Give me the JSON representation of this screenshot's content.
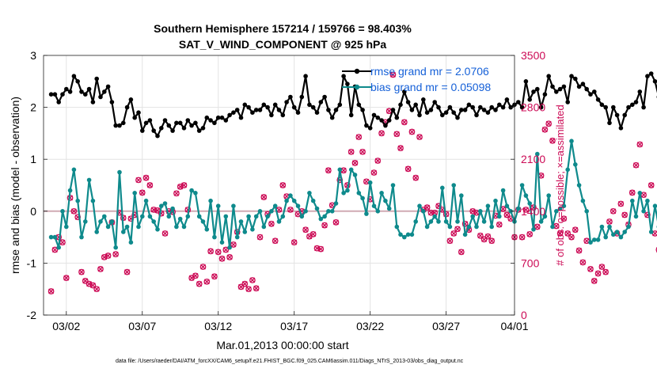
{
  "chart_data": {
    "type": "line",
    "title": "Southern Hemisphere 157214 / 159766 = 98.403%",
    "subtitle": "SAT_V_WIND_COMPONENT @ 925 hPa",
    "xlabel": "Mar.01,2013 00:00:00 start",
    "ylabel": "rmse and bias (model - observation)",
    "y2label": "# of obs: o=possible; ×=assimilated",
    "footnote": "data file: /Users/raeder/DAI/ATM_forcXX/CAM6_setup/f.e21.FHIST_BGC.f09_025.CAM6assim.011/Diags_NTrS_2013-03/obs_diag_output.nc",
    "ylim": [
      -2,
      3
    ],
    "y2lim": [
      0,
      3500
    ],
    "xlim": [
      0.5,
      31.5
    ],
    "grid": true,
    "yticks": [
      "-2",
      "-1",
      "0",
      "1",
      "2",
      "3"
    ],
    "y2ticks": [
      "0",
      "700",
      "1400",
      "2100",
      "2800",
      "3500"
    ],
    "xticks": [
      {
        "x": 2,
        "label": "03/02"
      },
      {
        "x": 7,
        "label": "03/07"
      },
      {
        "x": 12,
        "label": "03/12"
      },
      {
        "x": 17,
        "label": "03/17"
      },
      {
        "x": 22,
        "label": "03/22"
      },
      {
        "x": 27,
        "label": "03/27"
      },
      {
        "x": 32,
        "label": "04/01"
      }
    ],
    "legend_position": "top-right",
    "colors": {
      "rmse": "#000000",
      "bias": "#0e8a8c",
      "obs": "#cc0a55",
      "legend_text": "#1560d8",
      "zero_line": "#d0aab4"
    },
    "series": [
      {
        "name": "rmse grand mean",
        "legend_label": "rmse grand mr = 2.0706",
        "x_start": 1.0,
        "x_step": 0.25,
        "values": [
          2.25,
          2.25,
          2.1,
          2.25,
          2.35,
          2.3,
          2.6,
          2.5,
          2.3,
          2.25,
          2.35,
          2.1,
          2.55,
          2.2,
          2.3,
          2.4,
          2.1,
          1.65,
          1.65,
          1.7,
          2.0,
          2.15,
          1.8,
          1.9,
          1.55,
          1.7,
          1.75,
          1.55,
          1.45,
          1.6,
          1.75,
          1.65,
          1.55,
          1.7,
          1.7,
          1.6,
          1.75,
          1.65,
          1.7,
          1.55,
          1.6,
          1.8,
          1.75,
          1.7,
          1.8,
          1.8,
          1.75,
          1.85,
          1.9,
          1.95,
          1.8,
          2.05,
          2.0,
          1.9,
          1.95,
          1.95,
          2.05,
          2.0,
          1.85,
          2.05,
          1.95,
          1.85,
          2.1,
          2.2,
          2.0,
          1.9,
          2.2,
          2.6,
          2.05,
          2.0,
          1.9,
          2.1,
          2.2,
          1.95,
          1.8,
          1.95,
          2.05,
          2.6,
          2.45,
          1.85,
          2.4,
          2.05,
          1.95,
          1.65,
          1.6,
          1.85,
          1.8,
          1.75,
          1.65,
          1.75,
          1.95,
          1.8,
          2.05,
          2.3,
          2.1,
          1.95,
          2.05,
          1.85,
          2.15,
          1.9,
          1.95,
          2.1,
          2.0,
          1.85,
          1.9,
          2.0,
          1.9,
          1.8,
          1.95,
          1.95,
          2.05,
          2.0,
          1.85,
          2.0,
          1.95,
          1.9,
          2.0,
          1.95,
          2.05,
          2.0,
          2.15,
          2.0,
          2.05,
          2.1,
          2.0,
          2.5,
          2.15,
          2.3,
          2.35,
          2.0,
          2.25,
          2.6,
          2.4,
          2.3,
          2.35,
          2.4,
          2.1,
          2.6,
          2.55,
          2.4,
          2.45,
          2.35,
          2.25,
          2.3,
          2.15,
          2.05,
          2.0,
          1.7,
          2.0,
          1.85,
          1.6,
          1.85,
          2.0,
          2.05,
          2.1,
          2.3,
          2.0,
          2.6,
          2.65,
          2.5,
          2.2,
          2.4,
          2.2,
          2.1,
          2.0,
          2.1,
          2.9,
          2.35,
          2.5,
          2.3,
          2.1,
          2.6,
          2.15,
          2.0,
          2.25,
          2.1,
          2.3,
          2.2,
          2.1,
          2.35,
          2.3,
          2.2,
          2.05,
          2.5,
          2.35,
          2.2,
          2.25,
          2.4,
          2.2,
          2.4,
          2.5,
          2.65,
          2.8,
          2.35,
          2.9,
          2.45,
          2.85,
          2.5,
          2.75,
          2.6,
          2.4,
          2.65,
          2.35,
          2.3,
          2.15,
          2.25,
          2.35,
          2.45,
          2.5,
          2.3,
          2.6,
          2.8,
          2.5,
          2.2,
          2.35,
          2.1,
          2.45,
          2.3,
          2.4,
          2.2,
          2.35,
          2.5,
          2.1,
          2.35,
          2.25,
          2.1,
          2.25,
          2.35,
          2.2,
          2.3,
          2.85,
          2.65,
          2.3,
          2.1,
          1.75
        ]
      },
      {
        "name": "bias grand mean",
        "legend_label": "bias grand mr = 0.05098",
        "x_start": 1.0,
        "x_step": 0.25,
        "values": [
          -0.5,
          -0.5,
          -0.7,
          0.0,
          -0.3,
          0.4,
          0.8,
          0.2,
          -0.5,
          -0.2,
          0.6,
          0.2,
          -0.4,
          -0.2,
          -0.1,
          -0.3,
          -0.2,
          -0.7,
          0.75,
          -0.4,
          -0.3,
          -0.6,
          0.35,
          -0.3,
          -0.1,
          0.2,
          -0.1,
          -0.2,
          -0.35,
          0.1,
          0.15,
          -0.1,
          0.05,
          -0.3,
          -0.15,
          -0.3,
          -0.1,
          0.4,
          0.35,
          -0.1,
          -0.2,
          -0.35,
          0.2,
          -0.5,
          0.1,
          -0.6,
          -0.1,
          -0.7,
          0.1,
          -0.5,
          -0.2,
          -0.4,
          -0.1,
          -0.35,
          -0.1,
          0.0,
          -0.3,
          -0.1,
          0.0,
          0.1,
          -0.2,
          -0.1,
          0.2,
          0.3,
          0.2,
          0.1,
          -0.1,
          0.0,
          0.35,
          0.2,
          0.05,
          -0.15,
          -0.1,
          0.0,
          0.0,
          0.15,
          0.8,
          0.35,
          0.4,
          0.8,
          0.7,
          0.35,
          0.25,
          -0.05,
          0.55,
          0.1,
          0.0,
          0.35,
          0.2,
          0.05,
          0.5,
          -0.3,
          -0.45,
          -0.5,
          -0.45,
          -0.45,
          -0.2,
          0.1,
          0.0,
          -0.3,
          -0.2,
          -0.1,
          -0.2,
          0.45,
          -0.2,
          -0.3,
          0.5,
          -0.2,
          0.3,
          -0.45,
          -0.3,
          -0.1,
          -0.3,
          0.0,
          -0.2,
          0.1,
          -0.3,
          0.2,
          -0.1,
          0.4,
          0.1,
          0.0,
          -0.2,
          0.05,
          0.5,
          0.3,
          0.15,
          -0.35,
          1.1,
          -0.2,
          -0.1,
          0.3,
          -0.3,
          0.0,
          0.05,
          0.1,
          0.8,
          1.35,
          0.9,
          0.5,
          0.2,
          0.0,
          -0.6,
          -0.55,
          -0.55,
          -0.3,
          -0.5,
          -0.3,
          -0.45,
          -0.4,
          -0.5,
          -0.4,
          -0.3,
          0.2,
          -0.1,
          0.35,
          0.0,
          0.2,
          -0.4,
          0.1,
          -0.3,
          -0.5,
          0.3,
          -0.2,
          0.1,
          -0.7,
          -0.5,
          -0.1,
          0.1,
          0.2,
          -0.2,
          -0.35,
          0.1,
          0.6,
          -0.4,
          -0.5,
          -0.3,
          0.2,
          0.35,
          -0.1,
          -0.35,
          -0.1,
          -0.3,
          -0.2,
          -0.3,
          0.05,
          0.15,
          -0.5,
          -0.55,
          -0.3,
          0.0,
          -0.4,
          -0.2,
          -0.55,
          -0.6,
          0.15,
          -0.2,
          -0.3,
          -0.2,
          -0.05,
          0.4,
          -0.3,
          -0.8,
          -0.3,
          -0.1,
          -0.3,
          0.1,
          0.4,
          0.35,
          -0.1,
          0.0,
          -0.3,
          0.1,
          -0.4,
          -0.1,
          0.2,
          0.1,
          -0.2,
          -0.3,
          0.0,
          0.2,
          0.35,
          -0.4,
          -0.3,
          -0.1,
          0.1,
          -0.3,
          0.0,
          -0.1,
          -0.5,
          -0.1,
          -0.2,
          0.7,
          0.6
        ]
      },
      {
        "name": "# of obs",
        "x_start": 1.0,
        "x_step": 0.25,
        "values": [
          320,
          880,
          1050,
          980,
          500,
          1580,
          1400,
          1320,
          580,
          460,
          420,
          400,
          350,
          620,
          780,
          800,
          1250,
          820,
          1380,
          1310,
          580,
          1300,
          1350,
          1820,
          1650,
          1850,
          1750,
          1420,
          1410,
          1370,
          1100,
          1400,
          1390,
          1640,
          1730,
          1750,
          1420,
          500,
          530,
          420,
          650,
          450,
          860,
          520,
          850,
          760,
          880,
          780,
          950,
          1120,
          380,
          420,
          350,
          470,
          360,
          1050,
          1590,
          1360,
          1230,
          1000,
          1420,
          1750,
          1600,
          1420,
          980,
          1360,
          1400,
          1150,
          1060,
          1090,
          900,
          890,
          1210,
          1950,
          1480,
          1250,
          1820,
          1950,
          1750,
          2200,
          2050,
          2400,
          2200,
          1800,
          1560,
          1920,
          2080,
          2450,
          2600,
          2750,
          3240,
          2440,
          2250,
          2600,
          1970,
          2470,
          1850,
          2400,
          1420,
          1450,
          1380,
          1380,
          1470,
          1420,
          1360,
          1000,
          1100,
          1160,
          850,
          1230,
          1150,
          1400,
          1380,
          1070,
          1020,
          1060,
          1000,
          1340,
          1220,
          1430,
          1350,
          1300,
          1050,
          1420,
          1050,
          1420,
          1090,
          1450,
          1190,
          1880,
          2500,
          2580,
          2350,
          1200,
          1100,
          1300,
          1100,
          1050,
          1150,
          870,
          710,
          1000,
          620,
          460,
          560,
          650,
          580,
          1260,
          1400,
          1100,
          1500,
          1350,
          1220,
          1650,
          2020,
          2300,
          1620,
          1350,
          1750,
          1100,
          880,
          1450,
          1130,
          1500,
          1320,
          1250,
          1150,
          850,
          1080,
          430,
          580,
          400,
          550,
          1400,
          1600,
          1720,
          1780,
          1400,
          1150,
          850,
          1100,
          420,
          410,
          460,
          630,
          1260,
          1120,
          1600,
          1700,
          1660,
          1700,
          1400,
          1350,
          1400,
          1460,
          1200,
          1200,
          1040,
          1000,
          1100,
          1120,
          1400,
          1350,
          1050,
          1350,
          1000,
          990,
          1140,
          1280,
          1100,
          1480,
          900,
          880,
          820,
          1180,
          1020,
          1070,
          1320,
          1220,
          1350,
          1430,
          1300,
          1350,
          1140,
          1100,
          750,
          870,
          1020,
          1160,
          1300,
          1240,
          1340,
          1100,
          800,
          850,
          920,
          1300,
          1000,
          580,
          710,
          1500,
          1720,
          1380,
          1310,
          0
        ]
      }
    ]
  }
}
